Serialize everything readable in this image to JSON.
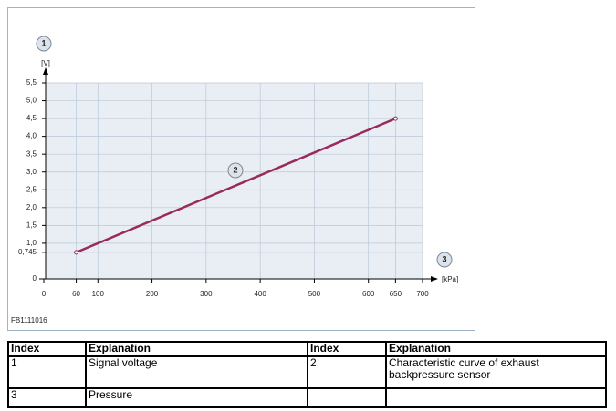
{
  "chart_data": {
    "type": "line",
    "x": [
      60,
      650
    ],
    "series": [
      {
        "name": null,
        "color": "#9b2a5c",
        "values": [
          0.745,
          4.5
        ]
      }
    ],
    "x_label": "[kPa]",
    "y_label": "[V]",
    "xlim": [
      0,
      700
    ],
    "ylim": [
      0,
      5.5
    ],
    "xticks": [
      0,
      60,
      100,
      200,
      300,
      400,
      500,
      600,
      650,
      700
    ],
    "yticks": [
      0,
      {
        "value": 0.745,
        "label": "0,745"
      },
      {
        "value": 1.0,
        "label": "1,0"
      },
      {
        "value": 1.5,
        "label": "1,5"
      },
      {
        "value": 2.0,
        "label": "2,0"
      },
      {
        "value": 2.5,
        "label": "2,5"
      },
      {
        "value": 3.0,
        "label": "3,0"
      },
      {
        "value": 3.5,
        "label": "3,5"
      },
      {
        "value": 4.0,
        "label": "4,0"
      },
      {
        "value": 4.5,
        "label": "4,5"
      },
      {
        "value": 5.0,
        "label": "5,0"
      },
      {
        "value": 5.5,
        "label": "5,5"
      }
    ],
    "grid": true
  },
  "callouts": [
    "1",
    "2",
    "3"
  ],
  "figure_id": "FB1111016",
  "table": {
    "header": [
      "Index",
      "Explanation",
      "Index",
      "Explanation"
    ],
    "rows": [
      [
        "1",
        "Signal voltage",
        "2",
        "Characteristic curve of exhaust backpressure sensor"
      ],
      [
        "3",
        "Pressure",
        "",
        ""
      ]
    ]
  }
}
